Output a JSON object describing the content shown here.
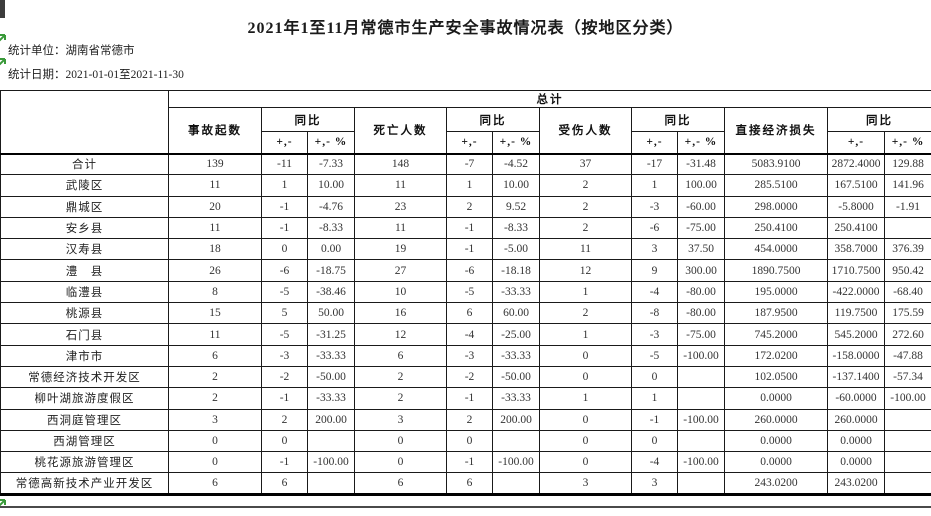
{
  "page": {
    "title": "2021年1至11月常德市生产安全事故情况表（按地区分类）",
    "unit_line": "统计单位：湖南省常德市",
    "date_line": "统计日期：2021-01-01至2021-11-30"
  },
  "icons": {
    "marker_name": "green-arrow",
    "marker_color": "#3a9a3a"
  },
  "colors": {
    "border": "#1a1a1a",
    "background": "#ffffff",
    "text": "#222222"
  },
  "table": {
    "group_header": "总计",
    "columns": {
      "accidents": "事故起数",
      "deaths": "死亡人数",
      "injured": "受伤人数",
      "loss": "直接经济损失",
      "yoy": "同比",
      "sub_abs": "+,-",
      "sub_pct": "+,- %"
    },
    "rows": [
      {
        "region": "合计",
        "values": [
          "139",
          "-11",
          "-7.33",
          "148",
          "-7",
          "-4.52",
          "37",
          "-17",
          "-31.48",
          "5083.9100",
          "2872.4000",
          "129.88"
        ]
      },
      {
        "region": "武陵区",
        "values": [
          "11",
          "1",
          "10.00",
          "11",
          "1",
          "10.00",
          "2",
          "1",
          "100.00",
          "285.5100",
          "167.5100",
          "141.96"
        ]
      },
      {
        "region": "鼎城区",
        "values": [
          "20",
          "-1",
          "-4.76",
          "23",
          "2",
          "9.52",
          "2",
          "-3",
          "-60.00",
          "298.0000",
          "-5.8000",
          "-1.91"
        ]
      },
      {
        "region": "安乡县",
        "values": [
          "11",
          "-1",
          "-8.33",
          "11",
          "-1",
          "-8.33",
          "2",
          "-6",
          "-75.00",
          "250.4100",
          "250.4100",
          ""
        ]
      },
      {
        "region": "汉寿县",
        "values": [
          "18",
          "0",
          "0.00",
          "19",
          "-1",
          "-5.00",
          "11",
          "3",
          "37.50",
          "454.0000",
          "358.7000",
          "376.39"
        ]
      },
      {
        "region": "澧　县",
        "values": [
          "26",
          "-6",
          "-18.75",
          "27",
          "-6",
          "-18.18",
          "12",
          "9",
          "300.00",
          "1890.7500",
          "1710.7500",
          "950.42"
        ]
      },
      {
        "region": "临澧县",
        "values": [
          "8",
          "-5",
          "-38.46",
          "10",
          "-5",
          "-33.33",
          "1",
          "-4",
          "-80.00",
          "195.0000",
          "-422.0000",
          "-68.40"
        ]
      },
      {
        "region": "桃源县",
        "values": [
          "15",
          "5",
          "50.00",
          "16",
          "6",
          "60.00",
          "2",
          "-8",
          "-80.00",
          "187.9500",
          "119.7500",
          "175.59"
        ]
      },
      {
        "region": "石门县",
        "values": [
          "11",
          "-5",
          "-31.25",
          "12",
          "-4",
          "-25.00",
          "1",
          "-3",
          "-75.00",
          "745.2000",
          "545.2000",
          "272.60"
        ]
      },
      {
        "region": "津市市",
        "values": [
          "6",
          "-3",
          "-33.33",
          "6",
          "-3",
          "-33.33",
          "0",
          "-5",
          "-100.00",
          "172.0200",
          "-158.0000",
          "-47.88"
        ]
      },
      {
        "region": "常德经济技术开发区",
        "values": [
          "2",
          "-2",
          "-50.00",
          "2",
          "-2",
          "-50.00",
          "0",
          "0",
          "",
          "102.0500",
          "-137.1400",
          "-57.34"
        ]
      },
      {
        "region": "柳叶湖旅游度假区",
        "values": [
          "2",
          "-1",
          "-33.33",
          "2",
          "-1",
          "-33.33",
          "1",
          "1",
          "",
          "0.0000",
          "-60.0000",
          "-100.00"
        ]
      },
      {
        "region": "西洞庭管理区",
        "values": [
          "3",
          "2",
          "200.00",
          "3",
          "2",
          "200.00",
          "0",
          "-1",
          "-100.00",
          "260.0000",
          "260.0000",
          ""
        ]
      },
      {
        "region": "西湖管理区",
        "values": [
          "0",
          "0",
          "",
          "0",
          "0",
          "",
          "0",
          "0",
          "",
          "0.0000",
          "0.0000",
          ""
        ]
      },
      {
        "region": "桃花源旅游管理区",
        "values": [
          "0",
          "-1",
          "-100.00",
          "0",
          "-1",
          "-100.00",
          "0",
          "-4",
          "-100.00",
          "0.0000",
          "0.0000",
          ""
        ]
      },
      {
        "region": "常德高新技术产业开发区",
        "values": [
          "6",
          "6",
          "",
          "6",
          "6",
          "",
          "3",
          "3",
          "",
          "243.0200",
          "243.0200",
          ""
        ]
      }
    ]
  }
}
